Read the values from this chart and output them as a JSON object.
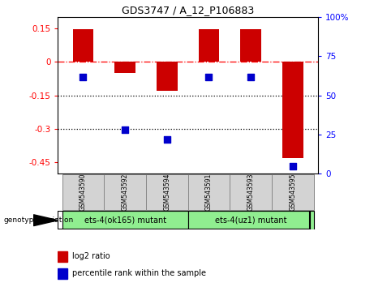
{
  "title": "GDS3747 / A_12_P106883",
  "samples": [
    "GSM543590",
    "GSM543592",
    "GSM543594",
    "GSM543591",
    "GSM543593",
    "GSM543595"
  ],
  "log2_ratio": [
    0.148,
    -0.05,
    -0.13,
    0.148,
    0.148,
    -0.43
  ],
  "percentile_rank": [
    62,
    28,
    22,
    62,
    62,
    5
  ],
  "bar_color": "#cc0000",
  "dot_color": "#0000cc",
  "ylim_left": [
    -0.5,
    0.2
  ],
  "ylim_right": [
    0,
    100
  ],
  "yticks_left": [
    0.15,
    0.0,
    -0.15,
    -0.3,
    -0.45
  ],
  "yticks_right": [
    100,
    75,
    50,
    25,
    0
  ],
  "dotted_lines": [
    -0.15,
    -0.3
  ],
  "group1_label": "ets-4(ok165) mutant",
  "group2_label": "ets-4(uz1) mutant",
  "group1_color": "#90ee90",
  "group2_color": "#90ee90",
  "legend_log2": "log2 ratio",
  "legend_pct": "percentile rank within the sample",
  "bar_width": 0.5,
  "dot_size": 30,
  "label_fontsize": 7,
  "tick_fontsize": 7.5,
  "title_fontsize": 9
}
